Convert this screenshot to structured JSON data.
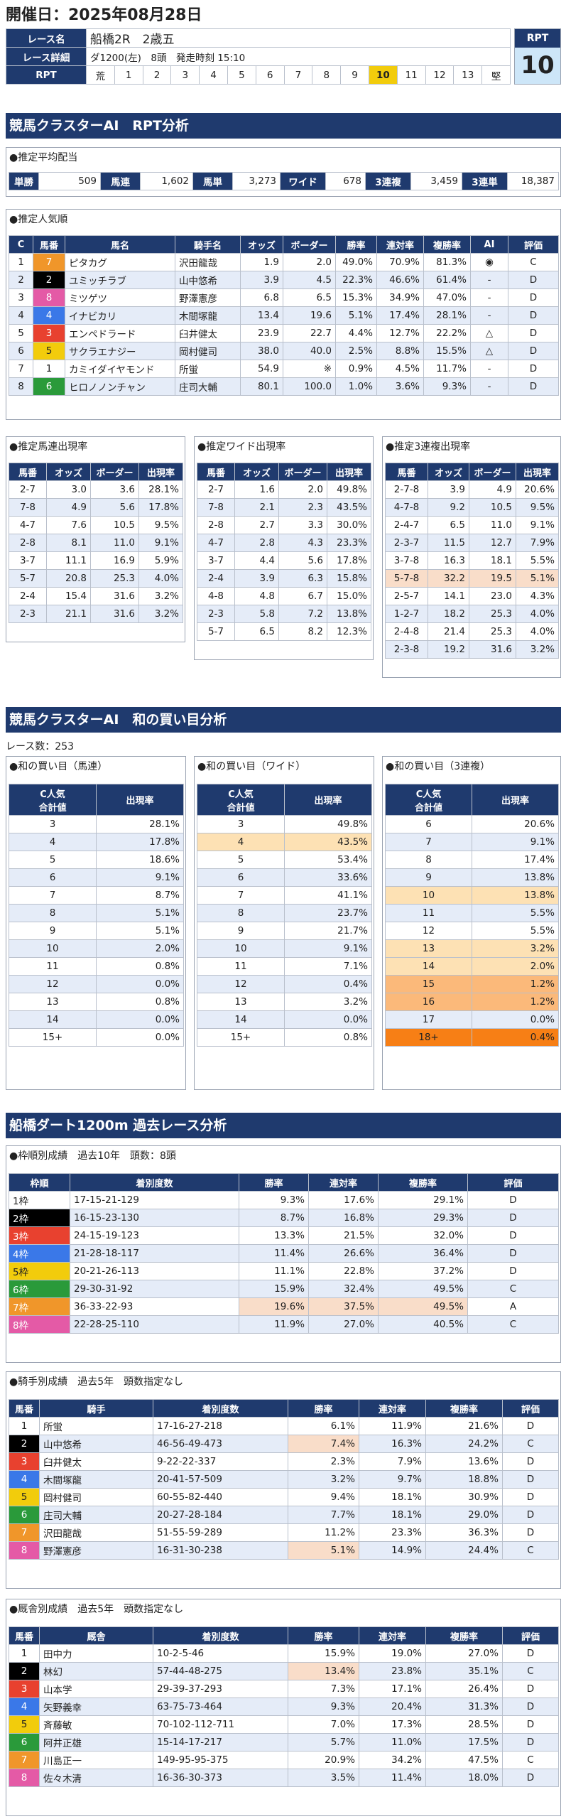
{
  "header": {
    "date": "開催日：2025年08月28日",
    "race_name_label": "レース名",
    "race_name": "船橋2R　2歳五",
    "detail_label": "レース詳細",
    "detail": "ダ1200(左)　8頭　発走時刻 15:10",
    "rpt_label": "RPT",
    "rpt_cells": [
      "荒",
      "1",
      "2",
      "3",
      "4",
      "5",
      "6",
      "7",
      "8",
      "9",
      "10",
      "11",
      "12",
      "13",
      "堅"
    ],
    "rpt_highlight": 10,
    "rpt_box_label": "RPT",
    "rpt_value": "10"
  },
  "section1": {
    "title": "競馬クラスターAI　RPT分析",
    "payout": {
      "title": "●推定平均配当",
      "items": [
        [
          "単勝",
          "509"
        ],
        [
          "馬連",
          "1,602"
        ],
        [
          "馬単",
          "3,273"
        ],
        [
          "ワイド",
          "678"
        ],
        [
          "3連複",
          "3,459"
        ],
        [
          "3連単",
          "18,387"
        ]
      ]
    },
    "popularity": {
      "title": "●推定人気順",
      "headers": [
        "C",
        "馬番",
        "馬名",
        "騎手名",
        "オッズ",
        "ボーダー",
        "勝率",
        "連対率",
        "複勝率",
        "AI",
        "評価"
      ],
      "rows": [
        [
          "1",
          "7",
          "ピタカグ",
          "沢田龍哉",
          "1.9",
          "2.0",
          "49.0%",
          "70.9%",
          "81.3%",
          "◉",
          "C"
        ],
        [
          "2",
          "2",
          "ユミッチラブ",
          "山中悠希",
          "3.9",
          "4.5",
          "22.3%",
          "46.6%",
          "61.4%",
          "-",
          "D"
        ],
        [
          "3",
          "8",
          "ミツゲツ",
          "野澤憲彦",
          "6.8",
          "6.5",
          "15.3%",
          "34.9%",
          "47.0%",
          "-",
          "D"
        ],
        [
          "4",
          "4",
          "イナビカリ",
          "木間塚龍",
          "13.4",
          "19.6",
          "5.1%",
          "17.4%",
          "28.1%",
          "-",
          "D"
        ],
        [
          "5",
          "3",
          "エンペドラード",
          "臼井健太",
          "23.9",
          "22.7",
          "4.4%",
          "12.7%",
          "22.2%",
          "△",
          "D"
        ],
        [
          "6",
          "5",
          "サクラエナジー",
          "岡村健司",
          "38.0",
          "40.0",
          "2.5%",
          "8.8%",
          "15.5%",
          "△",
          "D"
        ],
        [
          "7",
          "1",
          "カミイダイヤモンド",
          "所蛍",
          "54.9",
          "※",
          "0.9%",
          "4.5%",
          "11.7%",
          "-",
          "D"
        ],
        [
          "8",
          "6",
          "ヒロノノンチャン",
          "庄司大輔",
          "80.1",
          "100.0",
          "1.0%",
          "3.6%",
          "9.3%",
          "-",
          "D"
        ]
      ]
    },
    "umaren": {
      "title": "●推定馬連出現率",
      "headers": [
        "馬番",
        "オッズ",
        "ボーダー",
        "出現率"
      ],
      "rows": [
        [
          "2-7",
          "3.0",
          "3.6",
          "28.1%"
        ],
        [
          "7-8",
          "4.9",
          "5.6",
          "17.8%"
        ],
        [
          "4-7",
          "7.6",
          "10.5",
          "9.5%"
        ],
        [
          "2-8",
          "8.1",
          "11.0",
          "9.1%"
        ],
        [
          "3-7",
          "11.1",
          "16.9",
          "5.9%"
        ],
        [
          "5-7",
          "20.8",
          "25.3",
          "4.0%"
        ],
        [
          "2-4",
          "15.4",
          "31.6",
          "3.2%"
        ],
        [
          "2-3",
          "21.1",
          "31.6",
          "3.2%"
        ]
      ]
    },
    "wide": {
      "title": "●推定ワイド出現率",
      "headers": [
        "馬番",
        "オッズ",
        "ボーダー",
        "出現率"
      ],
      "rows": [
        [
          "2-7",
          "1.6",
          "2.0",
          "49.8%"
        ],
        [
          "7-8",
          "2.1",
          "2.3",
          "43.5%"
        ],
        [
          "2-8",
          "2.7",
          "3.3",
          "30.0%"
        ],
        [
          "4-7",
          "2.8",
          "4.3",
          "23.3%"
        ],
        [
          "3-7",
          "4.4",
          "5.6",
          "17.8%"
        ],
        [
          "2-4",
          "3.9",
          "6.3",
          "15.8%"
        ],
        [
          "4-8",
          "4.8",
          "6.7",
          "15.0%"
        ],
        [
          "2-3",
          "5.8",
          "7.2",
          "13.8%"
        ],
        [
          "5-7",
          "6.5",
          "8.2",
          "12.3%"
        ]
      ]
    },
    "sanrenpuku": {
      "title": "●推定3連複出現率",
      "headers": [
        "馬番",
        "オッズ",
        "ボーダー",
        "出現率"
      ],
      "rows": [
        [
          "2-7-8",
          "3.9",
          "4.9",
          "20.6%"
        ],
        [
          "4-7-8",
          "9.2",
          "10.5",
          "9.5%"
        ],
        [
          "2-4-7",
          "6.5",
          "11.0",
          "9.1%"
        ],
        [
          "2-3-7",
          "11.5",
          "12.7",
          "7.9%"
        ],
        [
          "3-7-8",
          "16.3",
          "18.1",
          "5.5%"
        ],
        [
          "5-7-8",
          "32.2",
          "19.5",
          "5.1%"
        ],
        [
          "2-5-7",
          "14.1",
          "23.0",
          "4.3%"
        ],
        [
          "1-2-7",
          "18.2",
          "25.3",
          "4.0%"
        ],
        [
          "2-4-8",
          "21.4",
          "25.3",
          "4.0%"
        ],
        [
          "2-3-8",
          "19.2",
          "31.6",
          "3.2%"
        ]
      ]
    }
  },
  "section2": {
    "title": "競馬クラスターAI　和の買い目分析",
    "race_count": "レース数：253",
    "umaren": {
      "title": "●和の買い目（馬連）",
      "head1": "C人気",
      "head2": "合計値",
      "head3": "出現率",
      "rows": [
        [
          "3",
          "28.1%"
        ],
        [
          "4",
          "17.8%"
        ],
        [
          "5",
          "18.6%"
        ],
        [
          "6",
          "9.1%"
        ],
        [
          "7",
          "8.7%"
        ],
        [
          "8",
          "5.1%"
        ],
        [
          "9",
          "5.1%"
        ],
        [
          "10",
          "2.0%"
        ],
        [
          "11",
          "0.8%"
        ],
        [
          "12",
          "0.0%"
        ],
        [
          "13",
          "0.8%"
        ],
        [
          "14",
          "0.0%"
        ],
        [
          "15+",
          "0.0%"
        ]
      ]
    },
    "wide": {
      "title": "●和の買い目（ワイド）",
      "head1": "C人気",
      "head2": "合計値",
      "head3": "出現率",
      "rows": [
        [
          "3",
          "49.8%"
        ],
        [
          "4",
          "43.5%"
        ],
        [
          "5",
          "53.4%"
        ],
        [
          "6",
          "33.6%"
        ],
        [
          "7",
          "41.1%"
        ],
        [
          "8",
          "23.7%"
        ],
        [
          "9",
          "21.7%"
        ],
        [
          "10",
          "9.1%"
        ],
        [
          "11",
          "7.1%"
        ],
        [
          "12",
          "0.4%"
        ],
        [
          "13",
          "3.2%"
        ],
        [
          "14",
          "0.0%"
        ],
        [
          "15+",
          "0.8%"
        ]
      ]
    },
    "sanrenpuku": {
      "title": "●和の買い目（3連複）",
      "head1": "C人気",
      "head2": "合計値",
      "head3": "出現率",
      "rows": [
        [
          "6",
          "20.6%"
        ],
        [
          "7",
          "9.1%"
        ],
        [
          "8",
          "17.4%"
        ],
        [
          "9",
          "13.8%"
        ],
        [
          "10",
          "13.8%"
        ],
        [
          "11",
          "5.5%"
        ],
        [
          "12",
          "5.5%"
        ],
        [
          "13",
          "3.2%"
        ],
        [
          "14",
          "2.0%"
        ],
        [
          "15",
          "1.2%"
        ],
        [
          "16",
          "1.2%"
        ],
        [
          "17",
          "0.0%"
        ],
        [
          "18+",
          "0.4%"
        ]
      ]
    }
  },
  "section3": {
    "title": "船橋ダート1200m 過去レース分析",
    "waku": {
      "title": "●枠順別成績　過去10年　頭数：8頭",
      "headers": [
        "枠順",
        "着別度数",
        "勝率",
        "連対率",
        "複勝率",
        "評価"
      ],
      "rows": [
        [
          "1枠",
          "17-15-21-129",
          "9.3%",
          "17.6%",
          "29.1%",
          "D"
        ],
        [
          "2枠",
          "16-15-23-130",
          "8.7%",
          "16.8%",
          "29.3%",
          "D"
        ],
        [
          "3枠",
          "24-15-19-123",
          "13.3%",
          "21.5%",
          "32.0%",
          "D"
        ],
        [
          "4枠",
          "21-28-18-117",
          "11.4%",
          "26.6%",
          "36.4%",
          "D"
        ],
        [
          "5枠",
          "20-21-26-113",
          "11.1%",
          "22.8%",
          "37.2%",
          "D"
        ],
        [
          "6枠",
          "29-30-31-92",
          "15.9%",
          "32.4%",
          "49.5%",
          "C"
        ],
        [
          "7枠",
          "36-33-22-93",
          "19.6%",
          "37.5%",
          "49.5%",
          "A"
        ],
        [
          "8枠",
          "22-28-25-110",
          "11.9%",
          "27.0%",
          "40.5%",
          "C"
        ]
      ]
    },
    "jockey": {
      "title": "●騎手別成績　過去5年　頭数指定なし",
      "headers": [
        "馬番",
        "騎手",
        "着別度数",
        "勝率",
        "連対率",
        "複勝率",
        "評価"
      ],
      "rows": [
        [
          "1",
          "所蛍",
          "17-16-27-218",
          "6.1%",
          "11.9%",
          "21.6%",
          "D"
        ],
        [
          "2",
          "山中悠希",
          "46-56-49-473",
          "7.4%",
          "16.3%",
          "24.2%",
          "C"
        ],
        [
          "3",
          "臼井健太",
          "9-22-22-337",
          "2.3%",
          "7.9%",
          "13.6%",
          "D"
        ],
        [
          "4",
          "木間塚龍",
          "20-41-57-509",
          "3.2%",
          "9.7%",
          "18.8%",
          "D"
        ],
        [
          "5",
          "岡村健司",
          "60-55-82-440",
          "9.4%",
          "18.1%",
          "30.9%",
          "D"
        ],
        [
          "6",
          "庄司大輔",
          "20-27-28-184",
          "7.7%",
          "18.1%",
          "29.0%",
          "D"
        ],
        [
          "7",
          "沢田龍哉",
          "51-55-59-289",
          "11.2%",
          "23.3%",
          "36.3%",
          "D"
        ],
        [
          "8",
          "野澤憲彦",
          "16-31-30-238",
          "5.1%",
          "14.9%",
          "24.4%",
          "C"
        ]
      ]
    },
    "trainer": {
      "title": "●厩舎別成績　過去5年　頭数指定なし",
      "headers": [
        "馬番",
        "厩舎",
        "着別度数",
        "勝率",
        "連対率",
        "複勝率",
        "評価"
      ],
      "rows": [
        [
          "1",
          "田中力",
          "10-2-5-46",
          "15.9%",
          "19.0%",
          "27.0%",
          "D"
        ],
        [
          "2",
          "林幻",
          "57-44-48-275",
          "13.4%",
          "23.8%",
          "35.1%",
          "C"
        ],
        [
          "3",
          "山本学",
          "29-39-37-293",
          "7.3%",
          "17.1%",
          "26.4%",
          "D"
        ],
        [
          "4",
          "矢野義幸",
          "63-75-73-464",
          "9.3%",
          "20.4%",
          "31.3%",
          "D"
        ],
        [
          "5",
          "斉藤敏",
          "70-102-112-711",
          "7.0%",
          "17.3%",
          "28.5%",
          "D"
        ],
        [
          "6",
          "阿井正雄",
          "15-14-17-217",
          "5.7%",
          "11.0%",
          "17.5%",
          "D"
        ],
        [
          "7",
          "川島正一",
          "149-95-95-375",
          "20.9%",
          "34.2%",
          "47.5%",
          "C"
        ],
        [
          "8",
          "佐々木清",
          "16-36-30-373",
          "3.5%",
          "11.4%",
          "18.0%",
          "D"
        ]
      ]
    }
  },
  "colors": {
    "navy": "#1f3a6e",
    "waku": [
      "#ffffff",
      "#000000",
      "#e8412f",
      "#3a78e8",
      "#f2cc0c",
      "#2a9a3a",
      "#f0962a",
      "#e45aa6"
    ]
  }
}
